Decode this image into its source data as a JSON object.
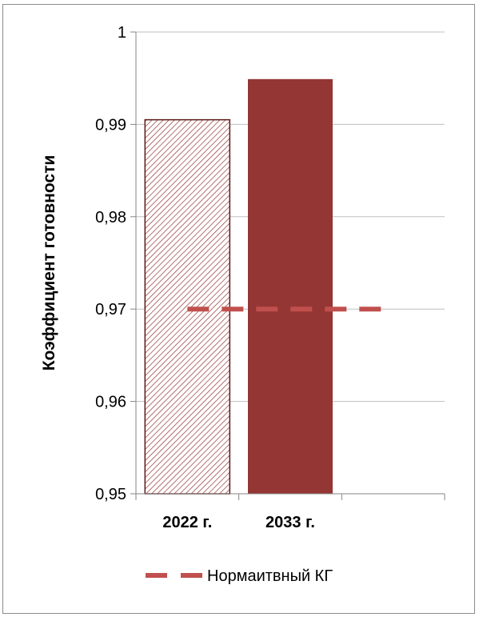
{
  "chart_data": {
    "type": "bar",
    "title": "",
    "xlabel": "",
    "ylabel": "Коэффициент готовности",
    "categories": [
      "2022 г.",
      "2033 г.",
      ""
    ],
    "values": [
      0.9905,
      0.9949,
      null
    ],
    "ylim": [
      0.95,
      1
    ],
    "yticks": [
      0.95,
      0.96,
      0.97,
      0.98,
      0.99,
      1
    ],
    "ytick_labels": [
      "0,95",
      "0,96",
      "0,97",
      "0,98",
      "0,99",
      "1"
    ],
    "reference_line": {
      "name": "Нормаитвный КГ",
      "value": 0.97,
      "color": "#c0504d",
      "style": "dashed"
    },
    "bar_styles": [
      {
        "fill": "hatched",
        "color": "#943634"
      },
      {
        "fill": "solid",
        "color": "#943634"
      }
    ],
    "grid": true,
    "legend": {
      "position": "bottom",
      "entries": [
        "Нормаитвный КГ"
      ]
    }
  }
}
